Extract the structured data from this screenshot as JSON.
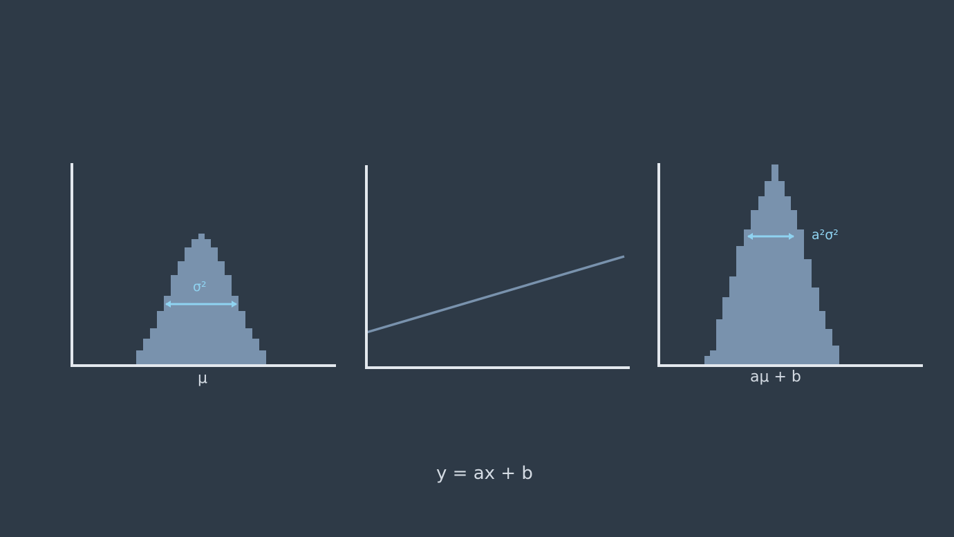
{
  "colors": {
    "background": "#2e3a47",
    "axis": "#e3e8ee",
    "histogram": "#7992ad",
    "line": "#7992ad",
    "arrow": "#8fd3f1",
    "text": "#d4dbe3"
  },
  "panels": [
    {
      "id": "input-distribution",
      "x_label": "μ",
      "variance_label": "σ²"
    },
    {
      "id": "linear-function"
    },
    {
      "id": "output-distribution",
      "x_label": "aμ + b",
      "variance_label": "a²σ²"
    }
  ],
  "equation": "y = ax + b"
}
